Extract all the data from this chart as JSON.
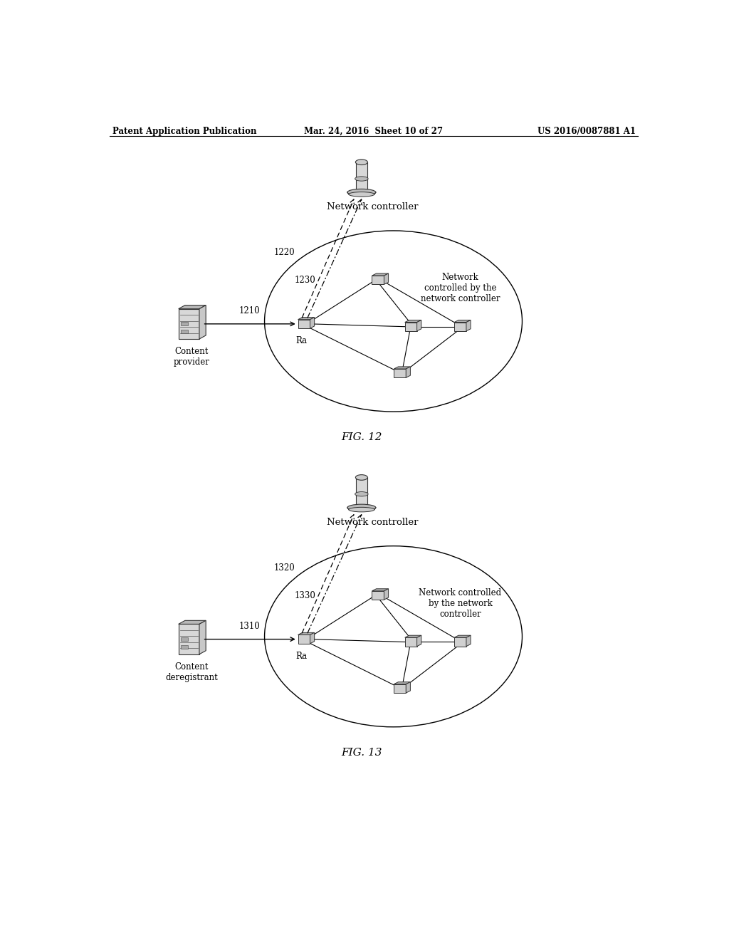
{
  "fig_width": 10.24,
  "fig_height": 13.2,
  "bg_color": "#ffffff",
  "header_left": "Patent Application Publication",
  "header_mid": "Mar. 24, 2016  Sheet 10 of 27",
  "header_right": "US 2016/0087881 A1",
  "fig12_label": "FIG. 12",
  "fig13_label": "FIG. 13",
  "fig12_network_label": "Network\ncontrolled by the\nnetwork controller",
  "fig13_network_label": "Network controlled\nby the network\ncontroller",
  "fig12_nc_label": "Network controller",
  "fig13_nc_label": "Network controller",
  "fig12_cp_label": "Content\nprovider",
  "fig13_cp_label": "Content\nderegistrant",
  "fig12_ra_label": "Ra",
  "fig13_ra_label": "Ra"
}
